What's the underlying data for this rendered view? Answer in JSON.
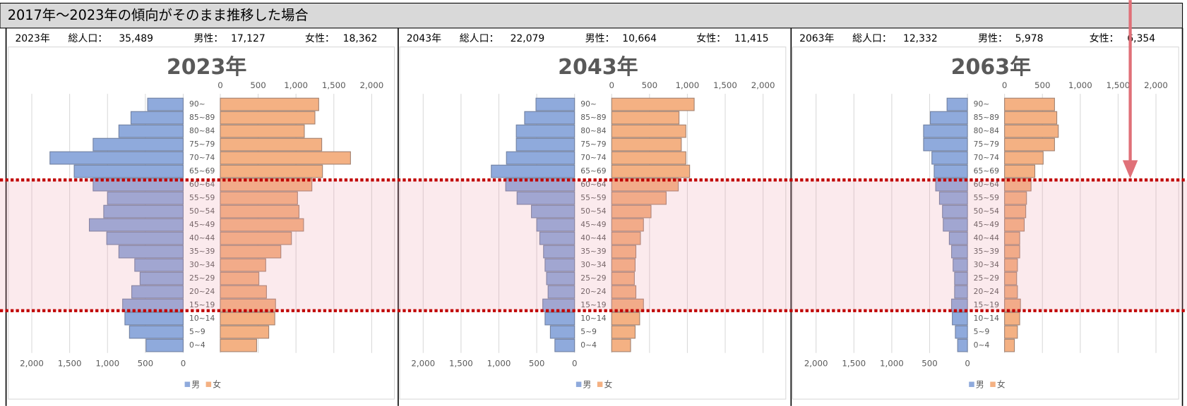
{
  "header": {
    "title": "2017年～2023年の傾向がそのまま推移した場合"
  },
  "chart_data": [
    {
      "type": "pyramid",
      "info": {
        "year": "2023年",
        "total_label": "総人口：",
        "total": "35,489",
        "male_label": "男性：",
        "male": "17,127",
        "female_label": "女性：",
        "female": "18,362"
      },
      "title": "2023年",
      "categories": [
        "90~",
        "85~89",
        "80~84",
        "75~79",
        "70~74",
        "65~69",
        "60~64",
        "55~59",
        "50~54",
        "45~49",
        "40~44",
        "35~39",
        "30~34",
        "25~29",
        "20~24",
        "15~19",
        "10~14",
        "5~9",
        "0~4"
      ],
      "series": [
        {
          "name": "男",
          "color": "#8faadc",
          "values": [
            470,
            690,
            850,
            1190,
            1760,
            1440,
            1190,
            1000,
            1050,
            1240,
            1010,
            850,
            640,
            570,
            680,
            800,
            770,
            710,
            490
          ]
        },
        {
          "name": "女",
          "color": "#f4b183",
          "values": [
            1300,
            1250,
            1110,
            1340,
            1720,
            1350,
            1210,
            1020,
            1040,
            1100,
            940,
            800,
            600,
            510,
            610,
            730,
            720,
            640,
            480
          ]
        }
      ],
      "xlim": [
        0,
        2000
      ],
      "xticks": [
        0,
        500,
        {
          "value": 1000,
          "label": "1,000"
        },
        {
          "value": 1500,
          "label": "1,500"
        },
        {
          "value": 2000,
          "label": "2,000"
        }
      ],
      "grid": true
    },
    {
      "type": "pyramid",
      "info": {
        "year": "2043年",
        "total_label": "総人口：",
        "total": "22,079",
        "male_label": "男性：",
        "male": "10,664",
        "female_label": "女性：",
        "female": "11,415"
      },
      "title": "2043年",
      "categories": [
        "90~",
        "85~89",
        "80~84",
        "75~79",
        "70~74",
        "65~69",
        "60~64",
        "55~59",
        "50~54",
        "45~49",
        "40~44",
        "35~39",
        "30~34",
        "25~29",
        "20~24",
        "15~19",
        "10~14",
        "5~9",
        "0~4"
      ],
      "series": [
        {
          "name": "男",
          "color": "#8faadc",
          "values": [
            510,
            660,
            770,
            770,
            900,
            1100,
            910,
            760,
            570,
            500,
            460,
            410,
            390,
            370,
            350,
            420,
            390,
            320,
            260
          ]
        },
        {
          "name": "女",
          "color": "#f4b183",
          "values": [
            1090,
            890,
            980,
            920,
            980,
            1030,
            880,
            720,
            520,
            420,
            380,
            320,
            310,
            300,
            320,
            420,
            370,
            310,
            250
          ]
        }
      ],
      "xlim": [
        0,
        2000
      ],
      "xticks": [
        0,
        500,
        {
          "value": 1000,
          "label": "1,000"
        },
        {
          "value": 1500,
          "label": "1,500"
        },
        {
          "value": 2000,
          "label": "2,000"
        }
      ],
      "grid": true
    },
    {
      "type": "pyramid",
      "info": {
        "year": "2063年",
        "total_label": "総人口：",
        "total": "12,332",
        "male_label": "男性：",
        "male": "5,978",
        "female_label": "女性：",
        "female": "6,354"
      },
      "title": "2063年",
      "categories": [
        "90~",
        "85~89",
        "80~84",
        "75~79",
        "70~74",
        "65~69",
        "60~64",
        "55~59",
        "50~54",
        "45~49",
        "40~44",
        "35~39",
        "30~34",
        "25~29",
        "20~24",
        "15~19",
        "10~14",
        "5~9",
        "0~4"
      ],
      "series": [
        {
          "name": "男",
          "color": "#8faadc",
          "values": [
            270,
            490,
            580,
            580,
            470,
            440,
            420,
            370,
            330,
            320,
            240,
            210,
            190,
            170,
            170,
            210,
            200,
            160,
            130
          ]
        },
        {
          "name": "女",
          "color": "#f4b183",
          "values": [
            660,
            690,
            710,
            660,
            510,
            400,
            350,
            290,
            280,
            260,
            200,
            200,
            170,
            160,
            170,
            210,
            200,
            170,
            130
          ]
        }
      ],
      "xlim": [
        0,
        2000
      ],
      "xticks": [
        0,
        500,
        {
          "value": 1000,
          "label": "1,000"
        },
        {
          "value": 1500,
          "label": "1,500"
        },
        {
          "value": 2000,
          "label": "2,000"
        }
      ],
      "grid": true
    }
  ]
}
